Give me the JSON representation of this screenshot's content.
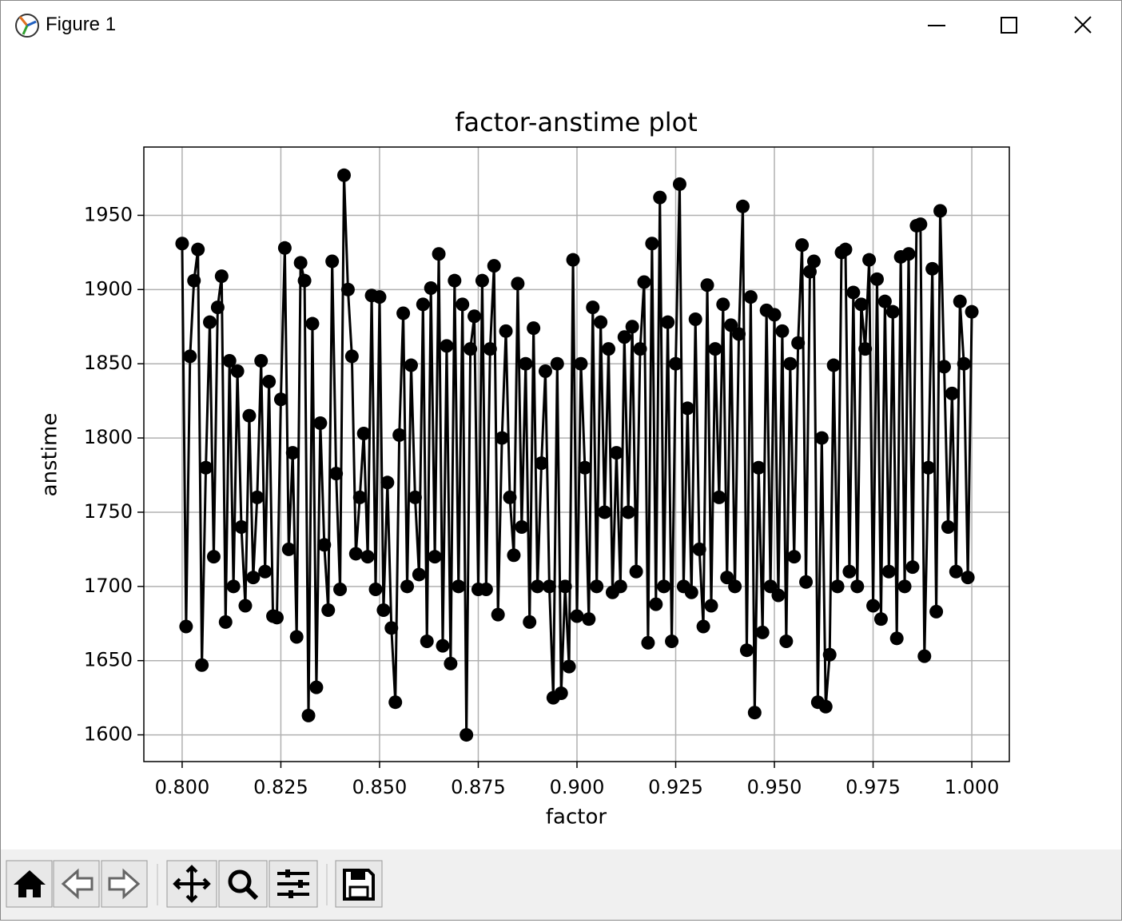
{
  "window": {
    "title": "Figure 1"
  },
  "chart_data": {
    "type": "line",
    "title": "factor-anstime plot",
    "x_label": "factor",
    "y_label": "anstime",
    "color": "#000000",
    "marker": "circle",
    "grid": true,
    "xlim": [
      0.7903,
      1.0095
    ],
    "ylim": [
      1582,
      1996
    ],
    "xticks": [
      {
        "value": 0.8,
        "label": "0.800"
      },
      {
        "value": 0.825,
        "label": "0.825"
      },
      {
        "value": 0.85,
        "label": "0.850"
      },
      {
        "value": 0.875,
        "label": "0.875"
      },
      {
        "value": 0.9,
        "label": "0.900"
      },
      {
        "value": 0.925,
        "label": "0.925"
      },
      {
        "value": 0.95,
        "label": "0.950"
      },
      {
        "value": 0.975,
        "label": "0.975"
      },
      {
        "value": 1.0,
        "label": "1.000"
      }
    ],
    "yticks": [
      1600,
      1650,
      1700,
      1750,
      1800,
      1850,
      1900,
      1950
    ],
    "x": [
      0.8,
      0.801,
      0.802,
      0.803,
      0.804,
      0.805,
      0.806,
      0.807,
      0.808,
      0.809,
      0.81,
      0.811,
      0.812,
      0.813,
      0.814,
      0.815,
      0.816,
      0.817,
      0.818,
      0.819,
      0.82,
      0.821,
      0.822,
      0.823,
      0.824,
      0.825,
      0.826,
      0.827,
      0.828,
      0.829,
      0.83,
      0.831,
      0.832,
      0.833,
      0.834,
      0.835,
      0.836,
      0.837,
      0.838,
      0.839,
      0.84,
      0.841,
      0.842,
      0.843,
      0.844,
      0.845,
      0.846,
      0.847,
      0.848,
      0.849,
      0.85,
      0.851,
      0.852,
      0.853,
      0.854,
      0.855,
      0.856,
      0.857,
      0.858,
      0.859,
      0.86,
      0.861,
      0.862,
      0.863,
      0.864,
      0.865,
      0.866,
      0.867,
      0.868,
      0.869,
      0.87,
      0.871,
      0.872,
      0.873,
      0.874,
      0.875,
      0.876,
      0.877,
      0.878,
      0.879,
      0.88,
      0.881,
      0.882,
      0.883,
      0.884,
      0.885,
      0.886,
      0.887,
      0.888,
      0.889,
      0.89,
      0.891,
      0.892,
      0.893,
      0.894,
      0.895,
      0.896,
      0.897,
      0.898,
      0.899,
      0.9,
      0.901,
      0.902,
      0.903,
      0.904,
      0.905,
      0.906,
      0.907,
      0.908,
      0.909,
      0.91,
      0.911,
      0.912,
      0.913,
      0.914,
      0.915,
      0.916,
      0.917,
      0.918,
      0.919,
      0.92,
      0.921,
      0.922,
      0.923,
      0.924,
      0.925,
      0.926,
      0.927,
      0.928,
      0.929,
      0.93,
      0.931,
      0.932,
      0.933,
      0.934,
      0.935,
      0.936,
      0.937,
      0.938,
      0.939,
      0.94,
      0.941,
      0.942,
      0.943,
      0.944,
      0.945,
      0.946,
      0.947,
      0.948,
      0.949,
      0.95,
      0.951,
      0.952,
      0.953,
      0.954,
      0.955,
      0.956,
      0.957,
      0.958,
      0.959,
      0.96,
      0.961,
      0.962,
      0.963,
      0.964,
      0.965,
      0.966,
      0.967,
      0.968,
      0.969,
      0.97,
      0.971,
      0.972,
      0.973,
      0.974,
      0.975,
      0.976,
      0.977,
      0.978,
      0.979,
      0.98,
      0.981,
      0.982,
      0.983,
      0.984,
      0.985,
      0.986,
      0.987,
      0.988,
      0.989,
      0.99,
      0.991,
      0.992,
      0.993,
      0.994,
      0.995,
      0.996,
      0.997,
      0.998,
      0.999,
      1.0
    ],
    "values": [
      1931,
      1673,
      1855,
      1906,
      1927,
      1647,
      1780,
      1878,
      1720,
      1888,
      1909,
      1676,
      1852,
      1700,
      1845,
      1740,
      1687,
      1815,
      1706,
      1760,
      1852,
      1710,
      1838,
      1680,
      1679,
      1826,
      1928,
      1725,
      1790,
      1666,
      1918,
      1906,
      1613,
      1877,
      1632,
      1810,
      1728,
      1684,
      1919,
      1776,
      1698,
      1977,
      1900,
      1855,
      1722,
      1760,
      1803,
      1720,
      1896,
      1698,
      1895,
      1684,
      1770,
      1672,
      1622,
      1802,
      1884,
      1700,
      1849,
      1760,
      1708,
      1890,
      1663,
      1901,
      1720,
      1924,
      1660,
      1862,
      1648,
      1906,
      1700,
      1890,
      1600,
      1860,
      1882,
      1698,
      1906,
      1698,
      1860,
      1916,
      1681,
      1800,
      1872,
      1760,
      1721,
      1904,
      1740,
      1850,
      1676,
      1874,
      1700,
      1783,
      1845,
      1700,
      1625,
      1850,
      1628,
      1700,
      1646,
      1920,
      1680,
      1850,
      1780,
      1678,
      1888,
      1700,
      1878,
      1750,
      1860,
      1696,
      1790,
      1700,
      1868,
      1750,
      1875,
      1710,
      1860,
      1905,
      1662,
      1931,
      1688,
      1962,
      1700,
      1878,
      1663,
      1850,
      1971,
      1700,
      1820,
      1696,
      1880,
      1725,
      1673,
      1903,
      1687,
      1860,
      1760,
      1890,
      1706,
      1876,
      1700,
      1870,
      1956,
      1657,
      1895,
      1615,
      1780,
      1669,
      1886,
      1700,
      1883,
      1694,
      1872,
      1663,
      1850,
      1720,
      1864,
      1930,
      1703,
      1912,
      1919,
      1622,
      1800,
      1619,
      1654,
      1849,
      1700,
      1925,
      1927,
      1710,
      1898,
      1700,
      1890,
      1860,
      1920,
      1687,
      1907,
      1678,
      1892,
      1710,
      1885,
      1665,
      1922,
      1700,
      1924,
      1713,
      1943,
      1944,
      1653,
      1780,
      1914,
      1683,
      1953,
      1848,
      1740,
      1830,
      1710,
      1892,
      1850,
      1706,
      1885
    ]
  }
}
